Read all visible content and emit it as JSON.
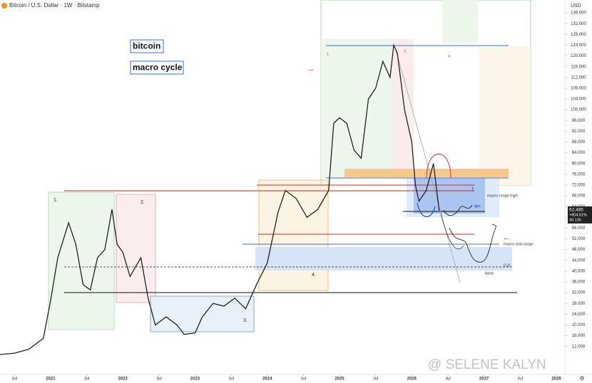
{
  "chart_data": {
    "type": "line",
    "header": "Bitcoin / U.S. Dollar · 1W · Bitstamp",
    "currency": "USD",
    "x": [
      2020.3,
      2020.5,
      2020.7,
      2020.9,
      2021.0,
      2021.1,
      2021.25,
      2021.35,
      2021.45,
      2021.55,
      2021.65,
      2021.75,
      2021.85,
      2021.92,
      2022.0,
      2022.1,
      2022.25,
      2022.35,
      2022.45,
      2022.6,
      2022.75,
      2022.85,
      2023.0,
      2023.1,
      2023.25,
      2023.4,
      2023.55,
      2023.7,
      2023.85,
      2024.0,
      2024.15,
      2024.25,
      2024.4,
      2024.55,
      2024.7,
      2024.85,
      2024.92,
      2025.0,
      2025.1,
      2025.2,
      2025.3,
      2025.4,
      2025.5,
      2025.6,
      2025.7,
      2025.75,
      2025.8,
      2025.9,
      2026.0,
      2026.05,
      2026.1,
      2026.2,
      2026.3,
      2026.38
    ],
    "values": [
      9000,
      9500,
      11000,
      15000,
      29000,
      45000,
      58000,
      50000,
      35000,
      33000,
      45000,
      48000,
      63000,
      50000,
      47000,
      38000,
      45000,
      30000,
      20000,
      23000,
      20000,
      16500,
      17000,
      23000,
      28000,
      27000,
      30000,
      26000,
      35000,
      43000,
      62000,
      70000,
      67000,
      60000,
      63000,
      70000,
      95000,
      97000,
      95000,
      85000,
      82000,
      104000,
      108000,
      118000,
      112000,
      124000,
      121000,
      100000,
      88000,
      72000,
      66000,
      70000,
      80000,
      62485
    ],
    "color": "#222222",
    "xlim": [
      2020.3,
      2028.1
    ],
    "xticks": [
      {
        "value": 2020.5,
        "label": "Jul"
      },
      2021,
      {
        "value": 2021.5,
        "label": "Jul"
      },
      2022,
      {
        "value": 2022.5,
        "label": "Jul"
      },
      2023,
      {
        "value": 2023.5,
        "label": "Jul"
      },
      2024,
      {
        "value": 2024.5,
        "label": "Jul"
      },
      2025,
      {
        "value": 2025.5,
        "label": "Jul"
      },
      2026,
      {
        "value": 2026.5,
        "label": "Jul"
      },
      2027,
      {
        "value": 2027.5,
        "label": "Jul"
      },
      2028
    ],
    "ylim": [
      800,
      140800
    ],
    "yticks": [
      {
        "value": 12000,
        "label": "12,000"
      },
      {
        "value": 16000,
        "label": "16,000"
      },
      {
        "value": 20000,
        "label": "20,000"
      },
      {
        "value": 24000,
        "label": "24,000"
      },
      {
        "value": 28000,
        "label": "28,000"
      },
      {
        "value": 32000,
        "label": "32,000"
      },
      {
        "value": 36000,
        "label": "36,000"
      },
      {
        "value": 40000,
        "label": "40,000"
      },
      {
        "value": 44000,
        "label": "44,000"
      },
      {
        "value": 48000,
        "label": "48,000"
      },
      {
        "value": 52000,
        "label": "52,000"
      },
      {
        "value": 56000,
        "label": "56,000"
      },
      {
        "value": 60000,
        "label": "60,000"
      },
      {
        "value": 64000,
        "label": "64,000"
      },
      {
        "value": 68000,
        "label": "68,000"
      },
      {
        "value": 72000,
        "label": "72,000"
      },
      {
        "value": 76000,
        "label": "76,000"
      },
      {
        "value": 80000,
        "label": "80,000"
      },
      {
        "value": 84000,
        "label": "84,000"
      },
      {
        "value": 88000,
        "label": "88,000"
      },
      {
        "value": 92000,
        "label": "92,000"
      },
      {
        "value": 96000,
        "label": "96,000"
      },
      {
        "value": 100000,
        "label": "100,000"
      },
      {
        "value": 104000,
        "label": "104,000"
      },
      {
        "value": 108000,
        "label": "108,000"
      },
      {
        "value": 112000,
        "label": "112,000"
      },
      {
        "value": 116000,
        "label": "116,000"
      },
      {
        "value": 120000,
        "label": "120,000"
      },
      {
        "value": 124000,
        "label": "124,000"
      },
      {
        "value": 128000,
        "label": "128,000"
      },
      {
        "value": 132000,
        "label": "132,000"
      },
      {
        "value": 136000,
        "label": "136,000"
      }
    ],
    "grid": false,
    "last_price": {
      "value": 62485,
      "label": "62,485"
    },
    "change": "+804.51%",
    "countdown": "3d 13h",
    "annotations": [
      "bitcoin",
      "macro cycle",
      "1.",
      "2.",
      "3.",
      "4.",
      "1.",
      "2.",
      "4.",
      "macro range high",
      "macro mid-range",
      "base",
      "0.26"
    ],
    "watermark": "@ SELENE KALYN"
  }
}
